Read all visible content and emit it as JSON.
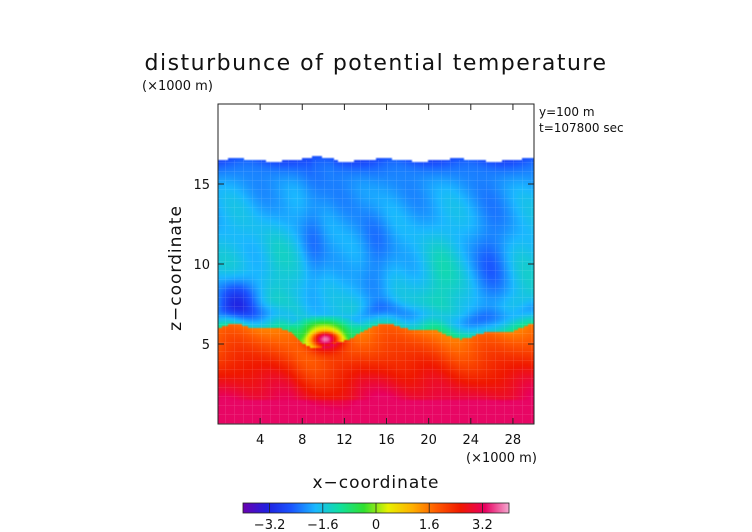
{
  "chart_data": {
    "type": "heatmap",
    "title": "disturbunce of potential temperature",
    "ylabel": "z−coordinate",
    "xlabel": "x−coordinate",
    "y_unit_label": "(×1000 m)",
    "x_unit_label": "(×1000 m)",
    "annotation_lines": [
      "y=100 m",
      "t=107800 sec"
    ],
    "xlim": [
      0,
      30
    ],
    "ylim": [
      0,
      20
    ],
    "x_ticks": [
      4,
      8,
      12,
      16,
      20,
      24,
      28
    ],
    "x_tick_labels": [
      "4",
      "8",
      "12",
      "16",
      "20",
      "24",
      "28"
    ],
    "y_ticks": [
      5,
      10,
      15
    ],
    "y_tick_labels": [
      "5",
      "10",
      "15"
    ],
    "field_top_z": 16.5,
    "value_range": [
      -4.0,
      4.0
    ],
    "features": [
      {
        "kind": "warm-bubble",
        "x": 10.2,
        "z": 5.4,
        "value": 3.8
      },
      {
        "kind": "cold-region",
        "x": 2.0,
        "z": 7.8,
        "value": -3.6
      },
      {
        "kind": "cold-column",
        "x": 15.0,
        "z": 10.0,
        "value": -2.4
      },
      {
        "kind": "cold-column",
        "x": 26.0,
        "z": 9.0,
        "value": -2.4
      }
    ],
    "colorbar": {
      "ticks": [
        -3.2,
        -1.6,
        0,
        1.6,
        3.2
      ],
      "tick_labels": [
        "−3.2",
        "−1.6",
        "0",
        "1.6",
        "3.2"
      ],
      "range": [
        -4.0,
        4.0
      ],
      "colors": [
        "#6a00b0",
        "#2020e0",
        "#1a55ff",
        "#1ab8ff",
        "#10e0a0",
        "#30e030",
        "#e8f000",
        "#ffb000",
        "#ff5a00",
        "#f01800",
        "#e80060",
        "#f4a8d0"
      ]
    }
  }
}
